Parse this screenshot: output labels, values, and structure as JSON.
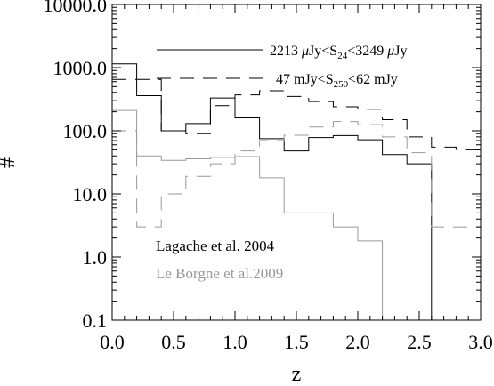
{
  "chart_data": {
    "type": "line",
    "xlabel": "z",
    "ylabel": "#",
    "xlim": [
      0.0,
      3.0
    ],
    "ylim": [
      0.1,
      10000.0
    ],
    "yscale": "log",
    "x_ticks": [
      "0.0",
      "0.5",
      "1.0",
      "1.5",
      "2.0",
      "2.5",
      "3.0"
    ],
    "y_ticks": [
      "0.1",
      "1.0",
      "10.0",
      "100.0",
      "1000.0",
      "10000.0"
    ],
    "legend_position": "top-right",
    "bin_edges": [
      0.0,
      0.2,
      0.4,
      0.6,
      0.8,
      1.0,
      1.2,
      1.4,
      1.6,
      1.8,
      2.0,
      2.2,
      2.4,
      2.6,
      2.8,
      3.0
    ],
    "series": [
      {
        "id": "solid-black",
        "name": "2213 μJy<S24<3249 μJy",
        "legend_label": {
          "prefix": "2213 ",
          "mu1": "μ",
          "mid1": "Jy<S",
          "sub": "24",
          "mid2": "<3249 ",
          "mu2": "μ",
          "suffix": "Jy"
        },
        "color": "#000000",
        "dash": "none",
        "values": [
          1150,
          360,
          100,
          130,
          330,
          160,
          75,
          48,
          78,
          84,
          72,
          42,
          30,
          null,
          null
        ]
      },
      {
        "id": "dashed-black",
        "name": "47 mJy<S250<62 mJy",
        "legend_label": {
          "prefix": "47 mJy<S",
          "sub": "250",
          "suffix": "<62 mJy"
        },
        "color": "#000000",
        "dash": "16,10",
        "values": [
          650,
          650,
          100,
          90,
          250,
          370,
          430,
          350,
          290,
          240,
          220,
          150,
          80,
          55,
          50
        ]
      },
      {
        "id": "solid-grey",
        "name": "Le Borgne et al.2009 (solid)",
        "color": "#999999",
        "dash": "none",
        "values": [
          210,
          40,
          34,
          36,
          38,
          39,
          18,
          5,
          5,
          3,
          1.8,
          null,
          null,
          null,
          null
        ]
      },
      {
        "id": "dashed-grey",
        "name": "Le Borgne et al.2009 (dashed)",
        "color": "#999999",
        "dash": "16,10",
        "values": [
          100,
          3,
          10,
          19,
          30,
          48,
          70,
          85,
          115,
          140,
          125,
          80,
          45,
          3,
          3
        ]
      }
    ],
    "annotations": [
      {
        "text": "Lagache et al. 2004",
        "color": "#000000"
      },
      {
        "text": "Le Borgne et al.2009",
        "color": "#999999"
      }
    ]
  }
}
